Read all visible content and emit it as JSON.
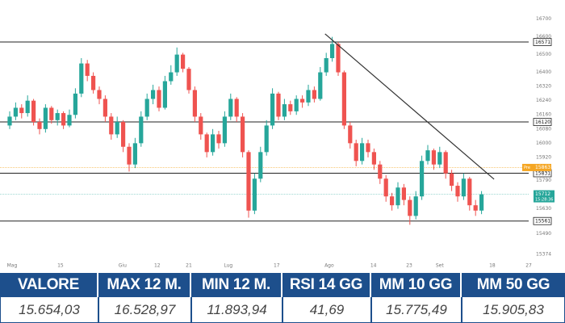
{
  "chart_data": {
    "type": "candlestick",
    "up_color": "#26a69a",
    "down_color": "#ef5350",
    "open": [
      16100,
      16150,
      16200,
      16170,
      16240,
      16120,
      16080,
      16200,
      16130,
      16170,
      16100,
      16160,
      16280,
      16450,
      16380,
      16300,
      16250,
      16150,
      16050,
      16120,
      15980,
      15880,
      16000,
      16150,
      16250,
      16300,
      16200,
      16350,
      16400,
      16500,
      16420,
      16300,
      16150,
      16050,
      15950,
      16050,
      16000,
      16150,
      16250,
      16150,
      15950,
      15620,
      15800,
      15950,
      16100,
      16280,
      16150,
      16220,
      16180,
      16250,
      16230,
      16300,
      16250,
      16400,
      16480,
      16560,
      16400,
      16100,
      16000,
      15900,
      16000,
      15950,
      15880,
      15800,
      15700,
      15650,
      15750,
      15680,
      15590,
      15700,
      15900,
      15960,
      15880,
      15950,
      15830,
      15760,
      15700,
      15800,
      15650,
      15620
    ],
    "high": [
      16180,
      16230,
      16220,
      16270,
      16250,
      16140,
      16220,
      16210,
      16190,
      16180,
      16190,
      16310,
      16480,
      16470,
      16400,
      16320,
      16270,
      16170,
      16150,
      16130,
      16000,
      16030,
      16180,
      16280,
      16330,
      16320,
      16380,
      16440,
      16540,
      16510,
      16430,
      16320,
      16170,
      16060,
      16080,
      16070,
      16180,
      16280,
      16260,
      16170,
      15960,
      15830,
      15980,
      16130,
      16310,
      16290,
      16250,
      16240,
      16270,
      16270,
      16330,
      16320,
      16430,
      16510,
      16600,
      16570,
      16410,
      16120,
      16020,
      16030,
      16020,
      15970,
      15900,
      15820,
      15720,
      15780,
      15770,
      15700,
      15730,
      15930,
      15990,
      15970,
      15980,
      15960,
      15850,
      15780,
      15830,
      15810,
      15680,
      15730
    ],
    "low": [
      16080,
      16130,
      16140,
      16150,
      16100,
      16050,
      16060,
      16110,
      16100,
      16080,
      16090,
      16140,
      16260,
      16350,
      16280,
      16220,
      16120,
      16020,
      16030,
      15950,
      15840,
      15860,
      15980,
      16130,
      16220,
      16180,
      16190,
      16330,
      16380,
      16400,
      16280,
      16120,
      16020,
      15920,
      15930,
      15970,
      15980,
      16130,
      16120,
      15920,
      15580,
      15600,
      15780,
      15930,
      16080,
      16130,
      16130,
      16160,
      16160,
      16200,
      16210,
      16230,
      16240,
      16380,
      16460,
      16380,
      16080,
      15970,
      15870,
      15880,
      15920,
      15850,
      15770,
      15670,
      15620,
      15630,
      15650,
      15540,
      15570,
      15680,
      15880,
      15850,
      15860,
      15800,
      15730,
      15670,
      15680,
      15620,
      15590,
      15600
    ],
    "close": [
      16150,
      16200,
      16170,
      16240,
      16120,
      16080,
      16200,
      16130,
      16170,
      16100,
      16160,
      16280,
      16450,
      16380,
      16300,
      16250,
      16150,
      16050,
      16120,
      15980,
      15880,
      16000,
      16150,
      16250,
      16300,
      16200,
      16350,
      16400,
      16500,
      16420,
      16300,
      16150,
      16050,
      15950,
      16050,
      16000,
      16150,
      16250,
      16150,
      15950,
      15620,
      15800,
      15950,
      16100,
      16280,
      16150,
      16220,
      16180,
      16250,
      16230,
      16300,
      16250,
      16400,
      16480,
      16560,
      16400,
      16100,
      16000,
      15900,
      16000,
      15950,
      15880,
      15800,
      15700,
      15650,
      15750,
      15680,
      15590,
      15700,
      15900,
      15960,
      15880,
      15950,
      15830,
      15760,
      15700,
      15800,
      15650,
      15620,
      15712
    ],
    "xlim": [
      -1.62,
      88.92
    ],
    "ylim": [
      15373,
      16808
    ],
    "xticks": [
      {
        "value": 0.4,
        "label": "Mag"
      },
      {
        "value": 8.5,
        "label": "15"
      },
      {
        "value": 18.9,
        "label": "Giu"
      },
      {
        "value": 24.7,
        "label": "12"
      },
      {
        "value": 30,
        "label": "21"
      },
      {
        "value": 36.6,
        "label": "Lug"
      },
      {
        "value": 44.7,
        "label": "17"
      },
      {
        "value": 53.5,
        "label": "Ago"
      },
      {
        "value": 60.9,
        "label": "14"
      },
      {
        "value": 66.9,
        "label": "23"
      },
      {
        "value": 72,
        "label": "Set"
      },
      {
        "value": 80.8,
        "label": "18"
      },
      {
        "value": 86.9,
        "label": "27"
      }
    ],
    "yticks": [
      16700,
      16600,
      16500,
      16400,
      16320,
      16240,
      16160,
      16080,
      16000,
      15920,
      15790,
      15710,
      15630,
      15490,
      15374
    ],
    "levels": [
      {
        "value": 16571,
        "color": "#222222"
      },
      {
        "value": 16120,
        "color": "#222222"
      },
      {
        "value": 15831,
        "color": "#222222"
      },
      {
        "value": 15561,
        "color": "#222222"
      }
    ],
    "pre_market": {
      "label": "Pre",
      "value": 15863,
      "color": "#f5a623"
    },
    "last": {
      "value": 15712,
      "time": "15:28:36",
      "color": "#26a69a"
    },
    "trendline": {
      "x": [
        52.8,
        81.1
      ],
      "y": [
        16617,
        15797
      ],
      "color": "#333333"
    }
  },
  "table": {
    "headers": [
      "VALORE",
      "MAX 12 M.",
      "MIN 12 M.",
      "RSI 14 GG",
      "MM 10 GG",
      "MM 50 GG"
    ],
    "values": [
      "15.654,03",
      "16.528,97",
      "11.893,94",
      "41,69",
      "15.775,49",
      "15.905,83"
    ]
  }
}
